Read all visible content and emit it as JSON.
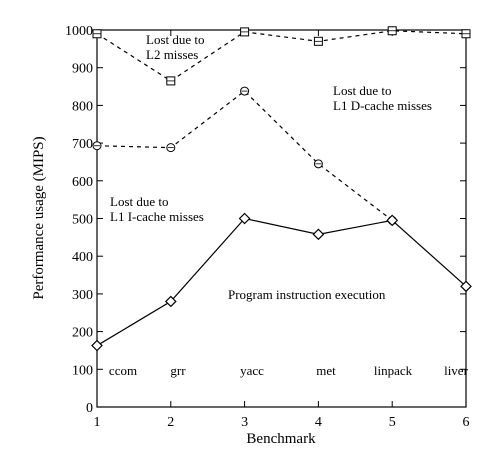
{
  "chart_data": {
    "type": "line",
    "xlabel": "Benchmark",
    "ylabel": "Performance usage (MIPS)",
    "x": [
      1,
      2,
      3,
      4,
      5,
      6
    ],
    "xlim": [
      1,
      6
    ],
    "ylim": [
      0,
      1000
    ],
    "xticks": [
      "1",
      "2",
      "3",
      "4",
      "5",
      "6"
    ],
    "yticks": [
      "0",
      "100",
      "200",
      "300",
      "400",
      "500",
      "600",
      "700",
      "800",
      "900",
      "1000"
    ],
    "grid": false,
    "benchmarks": [
      "ccom",
      "grr",
      "yacc",
      "met",
      "linpack",
      "liver"
    ],
    "series": [
      {
        "marker": "square",
        "line_style": "dashed",
        "values": [
          990,
          865,
          995,
          970,
          998,
          990
        ]
      },
      {
        "marker": "circle",
        "line_style": "dashed",
        "values": [
          693,
          688,
          838,
          645,
          495,
          null
        ]
      },
      {
        "marker": "diamond",
        "line_style": "solid",
        "values": [
          163,
          280,
          500,
          458,
          495,
          320
        ]
      }
    ],
    "annotations": [
      {
        "lines": [
          "Lost due to",
          "L2 misses"
        ]
      },
      {
        "lines": [
          "Lost due to",
          "L1 D-cache misses"
        ]
      },
      {
        "lines": [
          "Lost due to",
          "L1 I-cache misses"
        ]
      },
      {
        "lines": [
          "Program instruction execution"
        ]
      }
    ]
  }
}
